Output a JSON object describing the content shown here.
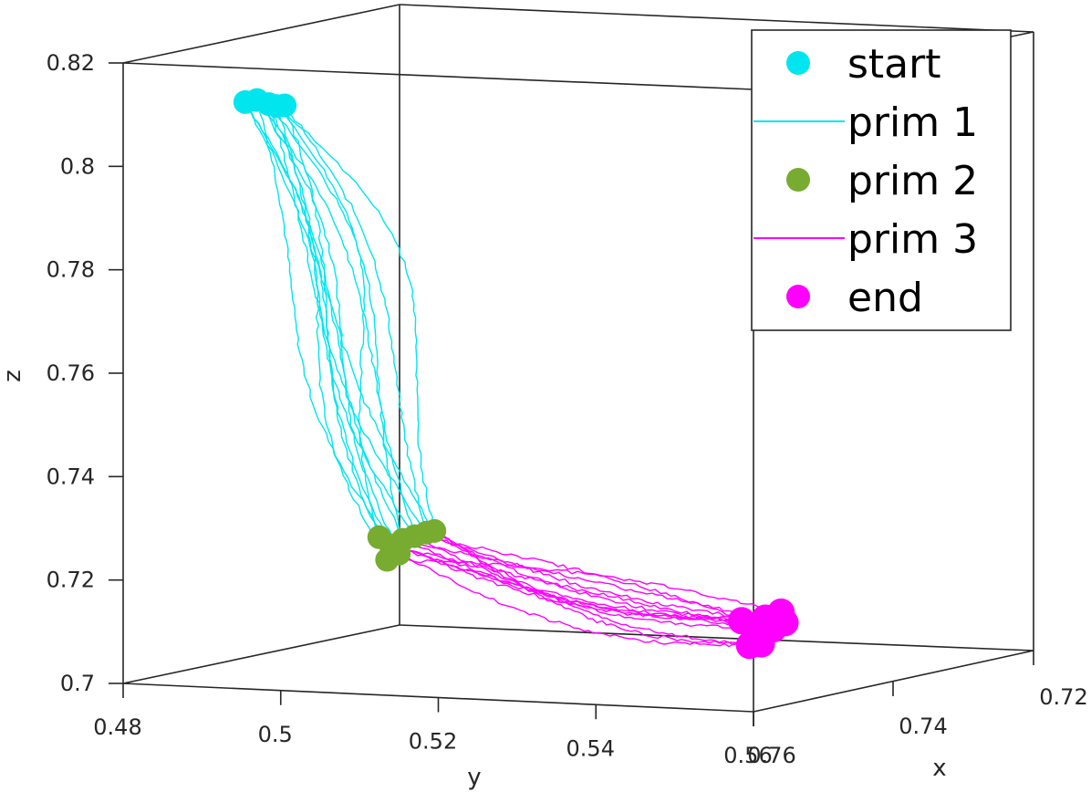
{
  "chart_data": {
    "type": "line",
    "projection": "3d",
    "title": "",
    "xlabel": "x",
    "ylabel": "y",
    "zlabel": "z",
    "xlim": [
      0.72,
      0.76
    ],
    "ylim": [
      0.48,
      0.56
    ],
    "zlim": [
      0.7,
      0.82
    ],
    "x_ticks": [
      "0.72",
      "0.74",
      "0.76"
    ],
    "y_ticks": [
      "0.48",
      "0.5",
      "0.52",
      "0.54",
      "0.56"
    ],
    "z_ticks": [
      "0.7",
      "0.72",
      "0.74",
      "0.76",
      "0.78",
      "0.8",
      "0.82"
    ],
    "grid": false,
    "legend_position": "top-right",
    "colors": {
      "prim1": "#00e5ee",
      "prim2": "#77ac30",
      "prim3": "#ff00ff"
    },
    "legend": [
      {
        "label": "start",
        "marker": "dot",
        "color": "#00e5ee"
      },
      {
        "label": "prim 1",
        "marker": "line",
        "color": "#00e5ee"
      },
      {
        "label": "prim 2",
        "marker": "dot",
        "color": "#77ac30"
      },
      {
        "label": "prim 3",
        "marker": "line",
        "color": "#ff00ff"
      },
      {
        "label": "end",
        "marker": "dot",
        "color": "#ff00ff"
      }
    ],
    "approximate_points": {
      "start": {
        "y": [
          0.4955,
          0.497,
          0.4985,
          0.4995,
          0.5005
        ],
        "z": [
          0.8135,
          0.814,
          0.8133,
          0.813,
          0.8132
        ]
      },
      "prim2": {
        "y": [
          0.5125,
          0.514,
          0.5155,
          0.517,
          0.5185,
          0.5195,
          0.515,
          0.5135
        ],
        "z": [
          0.7305,
          0.729,
          0.7302,
          0.731,
          0.7318,
          0.7322,
          0.7275,
          0.7262
        ]
      },
      "end": {
        "y": [
          0.5585,
          0.56,
          0.5615,
          0.5625,
          0.564,
          0.561,
          0.5595,
          0.5635
        ],
        "z": [
          0.7175,
          0.7165,
          0.7182,
          0.7162,
          0.7175,
          0.7132,
          0.7128,
          0.7195
        ]
      }
    }
  }
}
